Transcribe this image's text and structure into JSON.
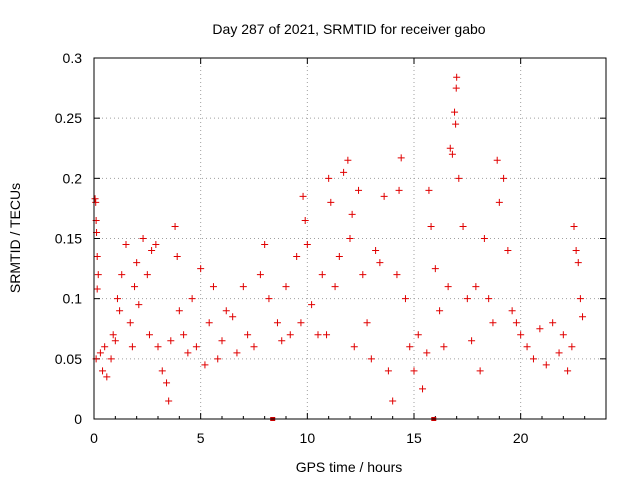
{
  "chart_data": {
    "type": "scatter",
    "title": "Day 287 of 2021, SRMTID for receiver gabo",
    "xlabel": "GPS time / hours",
    "ylabel": "SRMTID / TECUs",
    "xlim": [
      0,
      24
    ],
    "ylim": [
      0,
      0.3
    ],
    "x_ticks": [
      0,
      5,
      10,
      15,
      20
    ],
    "x_tick_labels": [
      "0",
      "5",
      "10",
      "15",
      "20"
    ],
    "y_ticks": [
      0,
      0.05,
      0.1,
      0.15,
      0.2,
      0.25,
      0.3
    ],
    "y_tick_labels": [
      "0",
      "0.05",
      "0.1",
      "0.15",
      "0.2",
      "0.25",
      "0.3"
    ],
    "grid": true,
    "marker": "+",
    "marker_color": "#e00000",
    "gap_marker_color": "#cc0000",
    "gaps_x": [
      8.4,
      15.95
    ],
    "series": [
      {
        "name": "SRMTID",
        "points": [
          [
            0.05,
            0.183
          ],
          [
            0.08,
            0.18
          ],
          [
            0.1,
            0.165
          ],
          [
            0.12,
            0.155
          ],
          [
            0.15,
            0.135
          ],
          [
            0.15,
            0.108
          ],
          [
            0.2,
            0.12
          ],
          [
            0.1,
            0.05
          ],
          [
            0.3,
            0.055
          ],
          [
            0.4,
            0.04
          ],
          [
            0.5,
            0.06
          ],
          [
            0.6,
            0.035
          ],
          [
            0.8,
            0.05
          ],
          [
            0.9,
            0.07
          ],
          [
            1.0,
            0.065
          ],
          [
            1.1,
            0.1
          ],
          [
            1.2,
            0.09
          ],
          [
            1.3,
            0.12
          ],
          [
            1.5,
            0.145
          ],
          [
            1.7,
            0.08
          ],
          [
            1.8,
            0.06
          ],
          [
            1.9,
            0.11
          ],
          [
            2.0,
            0.13
          ],
          [
            2.1,
            0.095
          ],
          [
            2.3,
            0.15
          ],
          [
            2.5,
            0.12
          ],
          [
            2.6,
            0.07
          ],
          [
            2.7,
            0.14
          ],
          [
            2.9,
            0.145
          ],
          [
            3.0,
            0.06
          ],
          [
            3.2,
            0.04
          ],
          [
            3.4,
            0.03
          ],
          [
            3.5,
            0.015
          ],
          [
            3.6,
            0.065
          ],
          [
            3.8,
            0.16
          ],
          [
            3.9,
            0.135
          ],
          [
            4.0,
            0.09
          ],
          [
            4.2,
            0.07
          ],
          [
            4.4,
            0.055
          ],
          [
            4.6,
            0.1
          ],
          [
            4.8,
            0.06
          ],
          [
            5.0,
            0.125
          ],
          [
            5.2,
            0.045
          ],
          [
            5.4,
            0.08
          ],
          [
            5.6,
            0.11
          ],
          [
            5.8,
            0.05
          ],
          [
            6.0,
            0.065
          ],
          [
            6.2,
            0.09
          ],
          [
            6.5,
            0.085
          ],
          [
            6.7,
            0.055
          ],
          [
            7.0,
            0.11
          ],
          [
            7.2,
            0.07
          ],
          [
            7.5,
            0.06
          ],
          [
            7.8,
            0.12
          ],
          [
            8.0,
            0.145
          ],
          [
            8.2,
            0.1
          ],
          [
            8.6,
            0.08
          ],
          [
            8.8,
            0.065
          ],
          [
            9.0,
            0.11
          ],
          [
            9.2,
            0.07
          ],
          [
            9.5,
            0.135
          ],
          [
            9.7,
            0.08
          ],
          [
            9.8,
            0.185
          ],
          [
            9.9,
            0.165
          ],
          [
            10.0,
            0.145
          ],
          [
            10.2,
            0.095
          ],
          [
            10.5,
            0.07
          ],
          [
            10.7,
            0.12
          ],
          [
            10.9,
            0.07
          ],
          [
            11.0,
            0.2
          ],
          [
            11.1,
            0.18
          ],
          [
            11.3,
            0.11
          ],
          [
            11.5,
            0.135
          ],
          [
            11.7,
            0.205
          ],
          [
            11.9,
            0.215
          ],
          [
            12.0,
            0.15
          ],
          [
            12.1,
            0.17
          ],
          [
            12.2,
            0.06
          ],
          [
            12.4,
            0.19
          ],
          [
            12.6,
            0.12
          ],
          [
            12.8,
            0.08
          ],
          [
            13.0,
            0.05
          ],
          [
            13.2,
            0.14
          ],
          [
            13.4,
            0.13
          ],
          [
            13.6,
            0.185
          ],
          [
            13.8,
            0.04
          ],
          [
            14.0,
            0.015
          ],
          [
            14.2,
            0.12
          ],
          [
            14.3,
            0.19
          ],
          [
            14.4,
            0.217
          ],
          [
            14.6,
            0.1
          ],
          [
            14.8,
            0.06
          ],
          [
            15.0,
            0.04
          ],
          [
            15.2,
            0.07
          ],
          [
            15.4,
            0.025
          ],
          [
            15.6,
            0.055
          ],
          [
            15.7,
            0.19
          ],
          [
            15.8,
            0.16
          ],
          [
            16.0,
            0.125
          ],
          [
            16.2,
            0.09
          ],
          [
            16.4,
            0.06
          ],
          [
            16.6,
            0.11
          ],
          [
            16.7,
            0.225
          ],
          [
            16.8,
            0.22
          ],
          [
            16.9,
            0.255
          ],
          [
            16.95,
            0.245
          ],
          [
            17.0,
            0.284
          ],
          [
            16.98,
            0.275
          ],
          [
            17.1,
            0.2
          ],
          [
            17.3,
            0.16
          ],
          [
            17.5,
            0.1
          ],
          [
            17.7,
            0.065
          ],
          [
            17.9,
            0.11
          ],
          [
            18.1,
            0.04
          ],
          [
            18.3,
            0.15
          ],
          [
            18.5,
            0.1
          ],
          [
            18.7,
            0.08
          ],
          [
            18.9,
            0.215
          ],
          [
            19.0,
            0.18
          ],
          [
            19.2,
            0.2
          ],
          [
            19.4,
            0.14
          ],
          [
            19.6,
            0.09
          ],
          [
            19.8,
            0.08
          ],
          [
            20.0,
            0.07
          ],
          [
            20.3,
            0.06
          ],
          [
            20.6,
            0.05
          ],
          [
            20.9,
            0.075
          ],
          [
            21.2,
            0.045
          ],
          [
            21.5,
            0.08
          ],
          [
            21.8,
            0.055
          ],
          [
            22.0,
            0.07
          ],
          [
            22.2,
            0.04
          ],
          [
            22.4,
            0.06
          ],
          [
            22.5,
            0.16
          ],
          [
            22.6,
            0.14
          ],
          [
            22.7,
            0.13
          ],
          [
            22.8,
            0.1
          ],
          [
            22.9,
            0.085
          ]
        ]
      }
    ]
  }
}
